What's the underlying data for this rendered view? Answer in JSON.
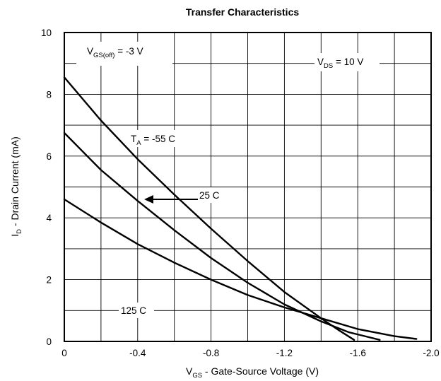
{
  "chart_data": {
    "type": "line",
    "title": "Transfer Characteristics",
    "xlabel": {
      "main": "V",
      "sub": "GS",
      "rest": " - Gate-Source Voltage (V)"
    },
    "ylabel": {
      "main": "I",
      "sub": "D",
      "rest": " - Drain Current (mA)"
    },
    "xlim": [
      0,
      -2.0
    ],
    "ylim": [
      0,
      10
    ],
    "xticks": [
      0,
      -0.2,
      -0.4,
      -0.6,
      -0.8,
      -1.0,
      -1.2,
      -1.4,
      -1.6,
      -1.8,
      -2.0
    ],
    "xtick_labels": [
      "0",
      "-0.4",
      "-0.8",
      "-1.2",
      "-1.6",
      "-2.0"
    ],
    "xtick_label_values": [
      0,
      -0.4,
      -0.8,
      -1.2,
      -1.6,
      -2.0
    ],
    "yticks": [
      0,
      1,
      2,
      3,
      4,
      5,
      6,
      7,
      8,
      9,
      10
    ],
    "ytick_labels": [
      "0",
      "2",
      "4",
      "6",
      "8",
      "10"
    ],
    "ytick_label_values": [
      0,
      2,
      4,
      6,
      8,
      10
    ],
    "grid": true,
    "series": [
      {
        "name": "T_A = -55 C",
        "points": [
          [
            0,
            8.55
          ],
          [
            -0.2,
            7.15
          ],
          [
            -0.4,
            5.9
          ],
          [
            -0.6,
            4.75
          ],
          [
            -0.8,
            3.65
          ],
          [
            -1.0,
            2.6
          ],
          [
            -1.2,
            1.6
          ],
          [
            -1.4,
            0.75
          ],
          [
            -1.5,
            0.35
          ],
          [
            -1.58,
            0.05
          ]
        ]
      },
      {
        "name": "25 C",
        "points": [
          [
            0,
            6.75
          ],
          [
            -0.2,
            5.55
          ],
          [
            -0.4,
            4.55
          ],
          [
            -0.6,
            3.6
          ],
          [
            -0.8,
            2.7
          ],
          [
            -1.0,
            1.9
          ],
          [
            -1.2,
            1.2
          ],
          [
            -1.4,
            0.65
          ],
          [
            -1.55,
            0.3
          ],
          [
            -1.72,
            0.05
          ]
        ]
      },
      {
        "name": "125 C",
        "points": [
          [
            0,
            4.6
          ],
          [
            -0.2,
            3.85
          ],
          [
            -0.4,
            3.15
          ],
          [
            -0.6,
            2.55
          ],
          [
            -0.8,
            2.0
          ],
          [
            -1.0,
            1.5
          ],
          [
            -1.2,
            1.1
          ],
          [
            -1.4,
            0.75
          ],
          [
            -1.6,
            0.4
          ],
          [
            -1.8,
            0.17
          ],
          [
            -1.92,
            0.08
          ]
        ]
      }
    ],
    "annotations": {
      "vgs_off": {
        "main": "V",
        "sub": "GS(off)",
        "rest": " = -3 V"
      },
      "vds": {
        "main": "V",
        "sub": "DS",
        "rest": " = 10 V"
      },
      "ta": {
        "main": "T",
        "sub": "A",
        "rest": " = -55 C"
      },
      "t25": "25 C",
      "t125": "125 C"
    }
  }
}
